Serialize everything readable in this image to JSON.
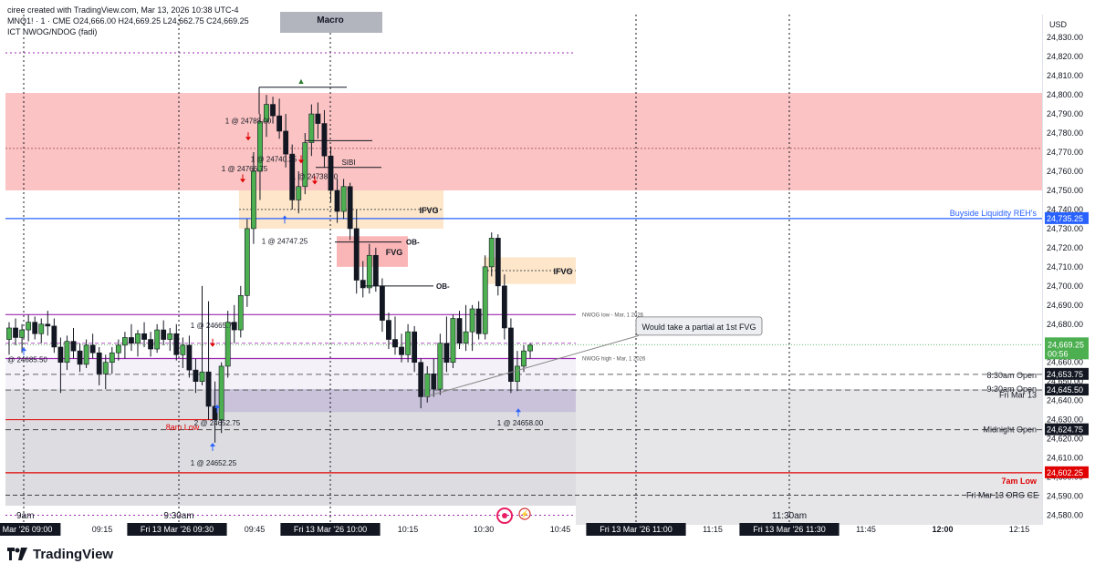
{
  "header": {
    "line1": "ciree created with TradingView.com, Mar 13, 2026 10:38 UTC-4",
    "line2": "MNQ1! · 1 · CME  O24,666.00  H24,669.25  L24,662.75  C24,669.25",
    "line3": "ICT NWOG/NDOG (fadi)"
  },
  "currency": "USD",
  "footer": {
    "brand": "TradingView"
  },
  "colors": {
    "up": "#4caf50",
    "down": "#131722",
    "red_zone": "#fbbcbc",
    "fvg_zone": "#fde2bf",
    "blue_line": "#2962ff",
    "purple": "#9c27b0",
    "red_line": "#e00000",
    "gray_zone": "#d9d9de"
  },
  "chart_data": {
    "type": "candlestick",
    "y_axis": {
      "ylim": [
        24575,
        24842
      ],
      "ticks": [
        "24,580.00",
        "24,590.00",
        "24,600.00",
        "24,610.00",
        "24,620.00",
        "24,630.00",
        "24,640.00",
        "24,650.00",
        "24,660.00",
        "24,670.00",
        "24,680.00",
        "24,690.00",
        "24,700.00",
        "24,710.00",
        "24,720.00",
        "24,730.00",
        "24,740.00",
        "24,750.00",
        "24,760.00",
        "24,770.00",
        "24,780.00",
        "24,790.00",
        "24,800.00",
        "24,810.00",
        "24,820.00",
        "24,830.00"
      ]
    },
    "x_axis": {
      "labels": [
        "Mar '26  09:00",
        "09:15",
        "Fri 13 Mar '26  09:30",
        "09:45",
        "Fri 13 Mar '26  10:00",
        "10:15",
        "10:30",
        "10:45",
        "Fri 13 Mar '26  11:00",
        "11:15",
        "Fri 13 Mar '26  11:30",
        "11:45",
        "12:00",
        "12:15"
      ],
      "highlight": [
        "Mar '26  09:00",
        "Fri 13 Mar '26  09:30",
        "Fri 13 Mar '26  10:00",
        "Fri 13 Mar '26  11:00",
        "Fri 13 Mar '26  11:30"
      ],
      "bold": [
        "12:00"
      ],
      "session_labels": [
        "9am",
        "9:30am",
        "11:30am"
      ]
    },
    "candles": [
      {
        "o": 24672,
        "h": 24681,
        "l": 24664,
        "c": 24678
      },
      {
        "o": 24678,
        "h": 24683,
        "l": 24669,
        "c": 24673
      },
      {
        "o": 24673,
        "h": 24680,
        "l": 24665,
        "c": 24677
      },
      {
        "o": 24677,
        "h": 24685,
        "l": 24671,
        "c": 24681
      },
      {
        "o": 24681,
        "h": 24684,
        "l": 24672,
        "c": 24675
      },
      {
        "o": 24675,
        "h": 24683,
        "l": 24670,
        "c": 24680
      },
      {
        "o": 24680,
        "h": 24687,
        "l": 24674,
        "c": 24679
      },
      {
        "o": 24679,
        "h": 24683,
        "l": 24665,
        "c": 24668
      },
      {
        "o": 24668,
        "h": 24673,
        "l": 24644,
        "c": 24660
      },
      {
        "o": 24660,
        "h": 24674,
        "l": 24656,
        "c": 24671
      },
      {
        "o": 24671,
        "h": 24678,
        "l": 24662,
        "c": 24666
      },
      {
        "o": 24666,
        "h": 24670,
        "l": 24655,
        "c": 24659
      },
      {
        "o": 24659,
        "h": 24672,
        "l": 24657,
        "c": 24669
      },
      {
        "o": 24669,
        "h": 24675,
        "l": 24662,
        "c": 24665
      },
      {
        "o": 24665,
        "h": 24668,
        "l": 24648,
        "c": 24654
      },
      {
        "o": 24654,
        "h": 24664,
        "l": 24646,
        "c": 24660
      },
      {
        "o": 24660,
        "h": 24668,
        "l": 24654,
        "c": 24665
      },
      {
        "o": 24665,
        "h": 24672,
        "l": 24661,
        "c": 24669
      },
      {
        "o": 24669,
        "h": 24676,
        "l": 24662,
        "c": 24673
      },
      {
        "o": 24673,
        "h": 24680,
        "l": 24666,
        "c": 24670
      },
      {
        "o": 24670,
        "h": 24677,
        "l": 24663,
        "c": 24675
      },
      {
        "o": 24675,
        "h": 24681,
        "l": 24668,
        "c": 24672
      },
      {
        "o": 24672,
        "h": 24676,
        "l": 24663,
        "c": 24667
      },
      {
        "o": 24667,
        "h": 24680,
        "l": 24665,
        "c": 24677
      },
      {
        "o": 24677,
        "h": 24682,
        "l": 24669,
        "c": 24672
      },
      {
        "o": 24672,
        "h": 24678,
        "l": 24666,
        "c": 24675
      },
      {
        "o": 24675,
        "h": 24680,
        "l": 24661,
        "c": 24664
      },
      {
        "o": 24664,
        "h": 24673,
        "l": 24657,
        "c": 24669
      },
      {
        "o": 24669,
        "h": 24674,
        "l": 24652,
        "c": 24656
      },
      {
        "o": 24656,
        "h": 24662,
        "l": 24644,
        "c": 24650
      },
      {
        "o": 24650,
        "h": 24700,
        "l": 24648,
        "c": 24655
      },
      {
        "o": 24655,
        "h": 24692,
        "l": 24630,
        "c": 24637
      },
      {
        "o": 24637,
        "h": 24650,
        "l": 24618,
        "c": 24630
      },
      {
        "o": 24630,
        "h": 24660,
        "l": 24623,
        "c": 24658
      },
      {
        "o": 24658,
        "h": 24687,
        "l": 24652,
        "c": 24681
      },
      {
        "o": 24681,
        "h": 24690,
        "l": 24670,
        "c": 24677
      },
      {
        "o": 24677,
        "h": 24700,
        "l": 24673,
        "c": 24695
      },
      {
        "o": 24695,
        "h": 24735,
        "l": 24689,
        "c": 24730
      },
      {
        "o": 24730,
        "h": 24770,
        "l": 24722,
        "c": 24760
      },
      {
        "o": 24760,
        "h": 24790,
        "l": 24745,
        "c": 24786
      },
      {
        "o": 24786,
        "h": 24800,
        "l": 24778,
        "c": 24795
      },
      {
        "o": 24795,
        "h": 24799,
        "l": 24785,
        "c": 24789
      },
      {
        "o": 24789,
        "h": 24798,
        "l": 24777,
        "c": 24781
      },
      {
        "o": 24781,
        "h": 24790,
        "l": 24762,
        "c": 24769
      },
      {
        "o": 24769,
        "h": 24774,
        "l": 24740,
        "c": 24745
      },
      {
        "o": 24745,
        "h": 24760,
        "l": 24738,
        "c": 24752
      },
      {
        "o": 24752,
        "h": 24780,
        "l": 24748,
        "c": 24775
      },
      {
        "o": 24775,
        "h": 24795,
        "l": 24768,
        "c": 24790
      },
      {
        "o": 24790,
        "h": 24796,
        "l": 24777,
        "c": 24785
      },
      {
        "o": 24785,
        "h": 24792,
        "l": 24762,
        "c": 24768
      },
      {
        "o": 24768,
        "h": 24773,
        "l": 24744,
        "c": 24750
      },
      {
        "o": 24750,
        "h": 24756,
        "l": 24733,
        "c": 24739
      },
      {
        "o": 24739,
        "h": 24756,
        "l": 24735,
        "c": 24752
      },
      {
        "o": 24752,
        "h": 24754,
        "l": 24724,
        "c": 24730
      },
      {
        "o": 24730,
        "h": 24740,
        "l": 24696,
        "c": 24703
      },
      {
        "o": 24703,
        "h": 24713,
        "l": 24694,
        "c": 24699
      },
      {
        "o": 24699,
        "h": 24722,
        "l": 24696,
        "c": 24716
      },
      {
        "o": 24716,
        "h": 24720,
        "l": 24697,
        "c": 24700
      },
      {
        "o": 24700,
        "h": 24704,
        "l": 24676,
        "c": 24682
      },
      {
        "o": 24682,
        "h": 24686,
        "l": 24667,
        "c": 24672
      },
      {
        "o": 24672,
        "h": 24684,
        "l": 24664,
        "c": 24668
      },
      {
        "o": 24668,
        "h": 24675,
        "l": 24660,
        "c": 24664
      },
      {
        "o": 24664,
        "h": 24680,
        "l": 24660,
        "c": 24676
      },
      {
        "o": 24676,
        "h": 24679,
        "l": 24655,
        "c": 24660
      },
      {
        "o": 24660,
        "h": 24662,
        "l": 24636,
        "c": 24642
      },
      {
        "o": 24642,
        "h": 24658,
        "l": 24639,
        "c": 24654
      },
      {
        "o": 24654,
        "h": 24662,
        "l": 24642,
        "c": 24646
      },
      {
        "o": 24646,
        "h": 24675,
        "l": 24643,
        "c": 24670
      },
      {
        "o": 24670,
        "h": 24684,
        "l": 24655,
        "c": 24660
      },
      {
        "o": 24660,
        "h": 24685,
        "l": 24657,
        "c": 24683
      },
      {
        "o": 24683,
        "h": 24687,
        "l": 24667,
        "c": 24670
      },
      {
        "o": 24670,
        "h": 24690,
        "l": 24666,
        "c": 24676
      },
      {
        "o": 24676,
        "h": 24690,
        "l": 24666,
        "c": 24688
      },
      {
        "o": 24688,
        "h": 24692,
        "l": 24672,
        "c": 24675
      },
      {
        "o": 24675,
        "h": 24716,
        "l": 24672,
        "c": 24710
      },
      {
        "o": 24710,
        "h": 24728,
        "l": 24705,
        "c": 24725
      },
      {
        "o": 24725,
        "h": 24727,
        "l": 24695,
        "c": 24700
      },
      {
        "o": 24700,
        "h": 24706,
        "l": 24672,
        "c": 24678
      },
      {
        "o": 24678,
        "h": 24683,
        "l": 24644,
        "c": 24650
      },
      {
        "o": 24650,
        "h": 24666,
        "l": 24645,
        "c": 24658
      },
      {
        "o": 24658,
        "h": 24669,
        "l": 24655,
        "c": 24666
      },
      {
        "o": 24666,
        "h": 24670,
        "l": 24662,
        "c": 24669
      }
    ],
    "zones": [
      {
        "label": "red-premium",
        "y0": 24750,
        "y1": 24801
      },
      {
        "label": "IFVG",
        "y0": 24730,
        "y1": 24750
      },
      {
        "label": "FVG",
        "y0": 24710,
        "y1": 24726
      },
      {
        "label": "IFVG",
        "y0": 24701,
        "y1": 24715
      },
      {
        "label": "NWOG",
        "y0": 24634,
        "y1": 24646
      },
      {
        "label": "lower-gray",
        "y0": 24585,
        "y1": 24646
      }
    ],
    "levels": [
      {
        "name": "Buyside Liquidity REH's",
        "price": 24735.25,
        "tag": "24,735.25"
      },
      {
        "name": "8:30am Open",
        "price": 24653.75,
        "tag": "24,653.75"
      },
      {
        "name": "9:30am Open",
        "price": 24645.5,
        "tag": "24,645.50"
      },
      {
        "name": "Midnight Open",
        "price": 24624.75,
        "tag": "24,624.75"
      },
      {
        "name": "7am Low",
        "price": 24602.25,
        "tag": "24,602.25"
      },
      {
        "name": "Fri Mar 13",
        "price": 24643.5
      },
      {
        "name": "Fri Mar 13 ORG CE",
        "price": 24590.5
      },
      {
        "name": "NWOG low - Mar, 1 2026",
        "price": 24685
      },
      {
        "name": "NWOG high - Mar, 1 2026",
        "price": 24662
      }
    ],
    "last_price": {
      "value": "24,669.25",
      "countdown": "00:56"
    },
    "annotations": {
      "macro": "Macro",
      "ifvg": "IFVG",
      "fvg": "FVG",
      "sibi": "SIBI",
      "ob": "OB-",
      "eight_am_low": "8am Low",
      "note": "Would take a partial at 1st FVG",
      "trades": [
        "1 @ 24788.00",
        "1 @ 24740.25",
        "1 @ 24738.00",
        "1 @ 24766.75",
        "1 @ 24747.25",
        "1 @ 24665.75",
        "@ 24685.50",
        "2 @ 24652.75",
        "1 @ 24652.25",
        "1 @ 24658.00"
      ]
    }
  }
}
